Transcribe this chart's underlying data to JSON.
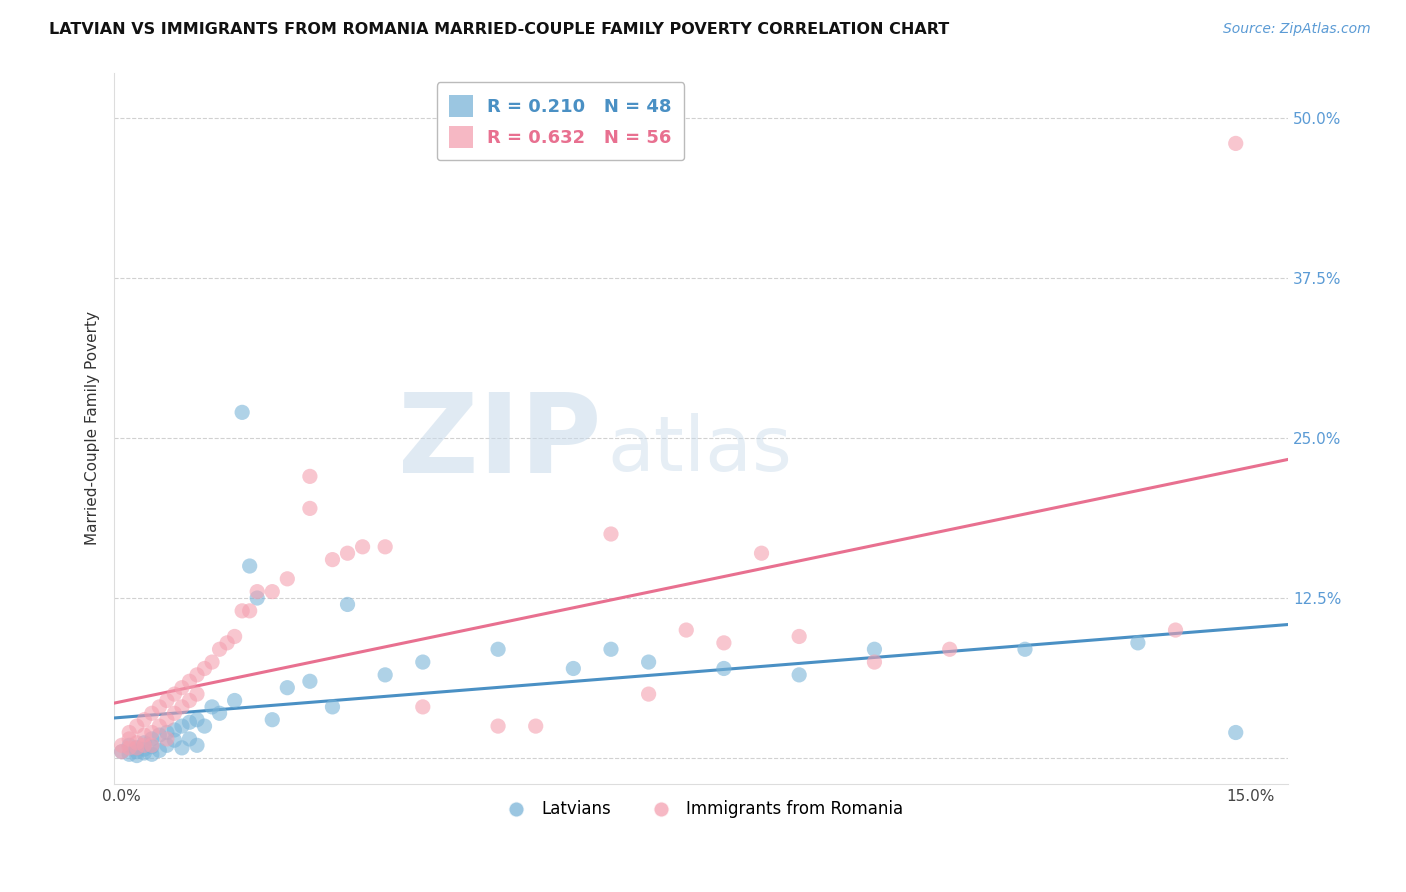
{
  "title": "LATVIAN VS IMMIGRANTS FROM ROMANIA MARRIED-COUPLE FAMILY POVERTY CORRELATION CHART",
  "source": "Source: ZipAtlas.com",
  "ylabel": "Married-Couple Family Poverty",
  "watermark_zip": "ZIP",
  "watermark_atlas": "atlas",
  "xlim": [
    -0.001,
    0.155
  ],
  "ylim": [
    -0.02,
    0.535
  ],
  "xticks": [
    0.0,
    0.05,
    0.1,
    0.15
  ],
  "xtick_labels": [
    "0.0%",
    "",
    "",
    "15.0%"
  ],
  "yticks": [
    0.0,
    0.125,
    0.25,
    0.375,
    0.5
  ],
  "ytick_labels": [
    "",
    "12.5%",
    "25.0%",
    "37.5%",
    "50.0%"
  ],
  "latvian_color": "#7ab4d8",
  "romania_color": "#f4a0b0",
  "latvian_line_color": "#4a90c4",
  "romania_line_color": "#e87090",
  "latvian_R": 0.21,
  "latvian_N": 48,
  "romania_R": 0.632,
  "romania_N": 56,
  "legend_label_latvian": "Latvians",
  "legend_label_romania": "Immigrants from Romania",
  "yticklabel_color": "#5b9bd5",
  "latvian_x": [
    0.0,
    0.001,
    0.001,
    0.002,
    0.002,
    0.002,
    0.003,
    0.003,
    0.003,
    0.004,
    0.004,
    0.004,
    0.005,
    0.005,
    0.006,
    0.006,
    0.007,
    0.007,
    0.008,
    0.008,
    0.009,
    0.009,
    0.01,
    0.01,
    0.011,
    0.012,
    0.013,
    0.015,
    0.016,
    0.017,
    0.018,
    0.02,
    0.022,
    0.025,
    0.028,
    0.03,
    0.035,
    0.04,
    0.05,
    0.06,
    0.065,
    0.07,
    0.08,
    0.09,
    0.1,
    0.12,
    0.135,
    0.148
  ],
  "latvian_y": [
    0.005,
    0.01,
    0.003,
    0.008,
    0.005,
    0.002,
    0.012,
    0.007,
    0.004,
    0.015,
    0.009,
    0.003,
    0.018,
    0.006,
    0.02,
    0.01,
    0.022,
    0.014,
    0.025,
    0.008,
    0.028,
    0.015,
    0.03,
    0.01,
    0.025,
    0.04,
    0.035,
    0.045,
    0.27,
    0.15,
    0.125,
    0.03,
    0.055,
    0.06,
    0.04,
    0.12,
    0.065,
    0.075,
    0.085,
    0.07,
    0.085,
    0.075,
    0.07,
    0.065,
    0.085,
    0.085,
    0.09,
    0.02
  ],
  "romania_x": [
    0.0,
    0.0,
    0.001,
    0.001,
    0.001,
    0.002,
    0.002,
    0.002,
    0.003,
    0.003,
    0.003,
    0.004,
    0.004,
    0.004,
    0.005,
    0.005,
    0.006,
    0.006,
    0.006,
    0.007,
    0.007,
    0.008,
    0.008,
    0.009,
    0.009,
    0.01,
    0.01,
    0.011,
    0.012,
    0.013,
    0.014,
    0.015,
    0.016,
    0.017,
    0.018,
    0.02,
    0.022,
    0.025,
    0.025,
    0.028,
    0.03,
    0.032,
    0.035,
    0.04,
    0.05,
    0.055,
    0.065,
    0.07,
    0.075,
    0.08,
    0.085,
    0.09,
    0.1,
    0.11,
    0.14,
    0.148
  ],
  "romania_y": [
    0.005,
    0.01,
    0.02,
    0.008,
    0.015,
    0.025,
    0.012,
    0.008,
    0.03,
    0.018,
    0.01,
    0.035,
    0.02,
    0.01,
    0.04,
    0.025,
    0.045,
    0.03,
    0.015,
    0.05,
    0.035,
    0.055,
    0.04,
    0.06,
    0.045,
    0.065,
    0.05,
    0.07,
    0.075,
    0.085,
    0.09,
    0.095,
    0.115,
    0.115,
    0.13,
    0.13,
    0.14,
    0.22,
    0.195,
    0.155,
    0.16,
    0.165,
    0.165,
    0.04,
    0.025,
    0.025,
    0.175,
    0.05,
    0.1,
    0.09,
    0.16,
    0.095,
    0.075,
    0.085,
    0.1,
    0.48
  ]
}
